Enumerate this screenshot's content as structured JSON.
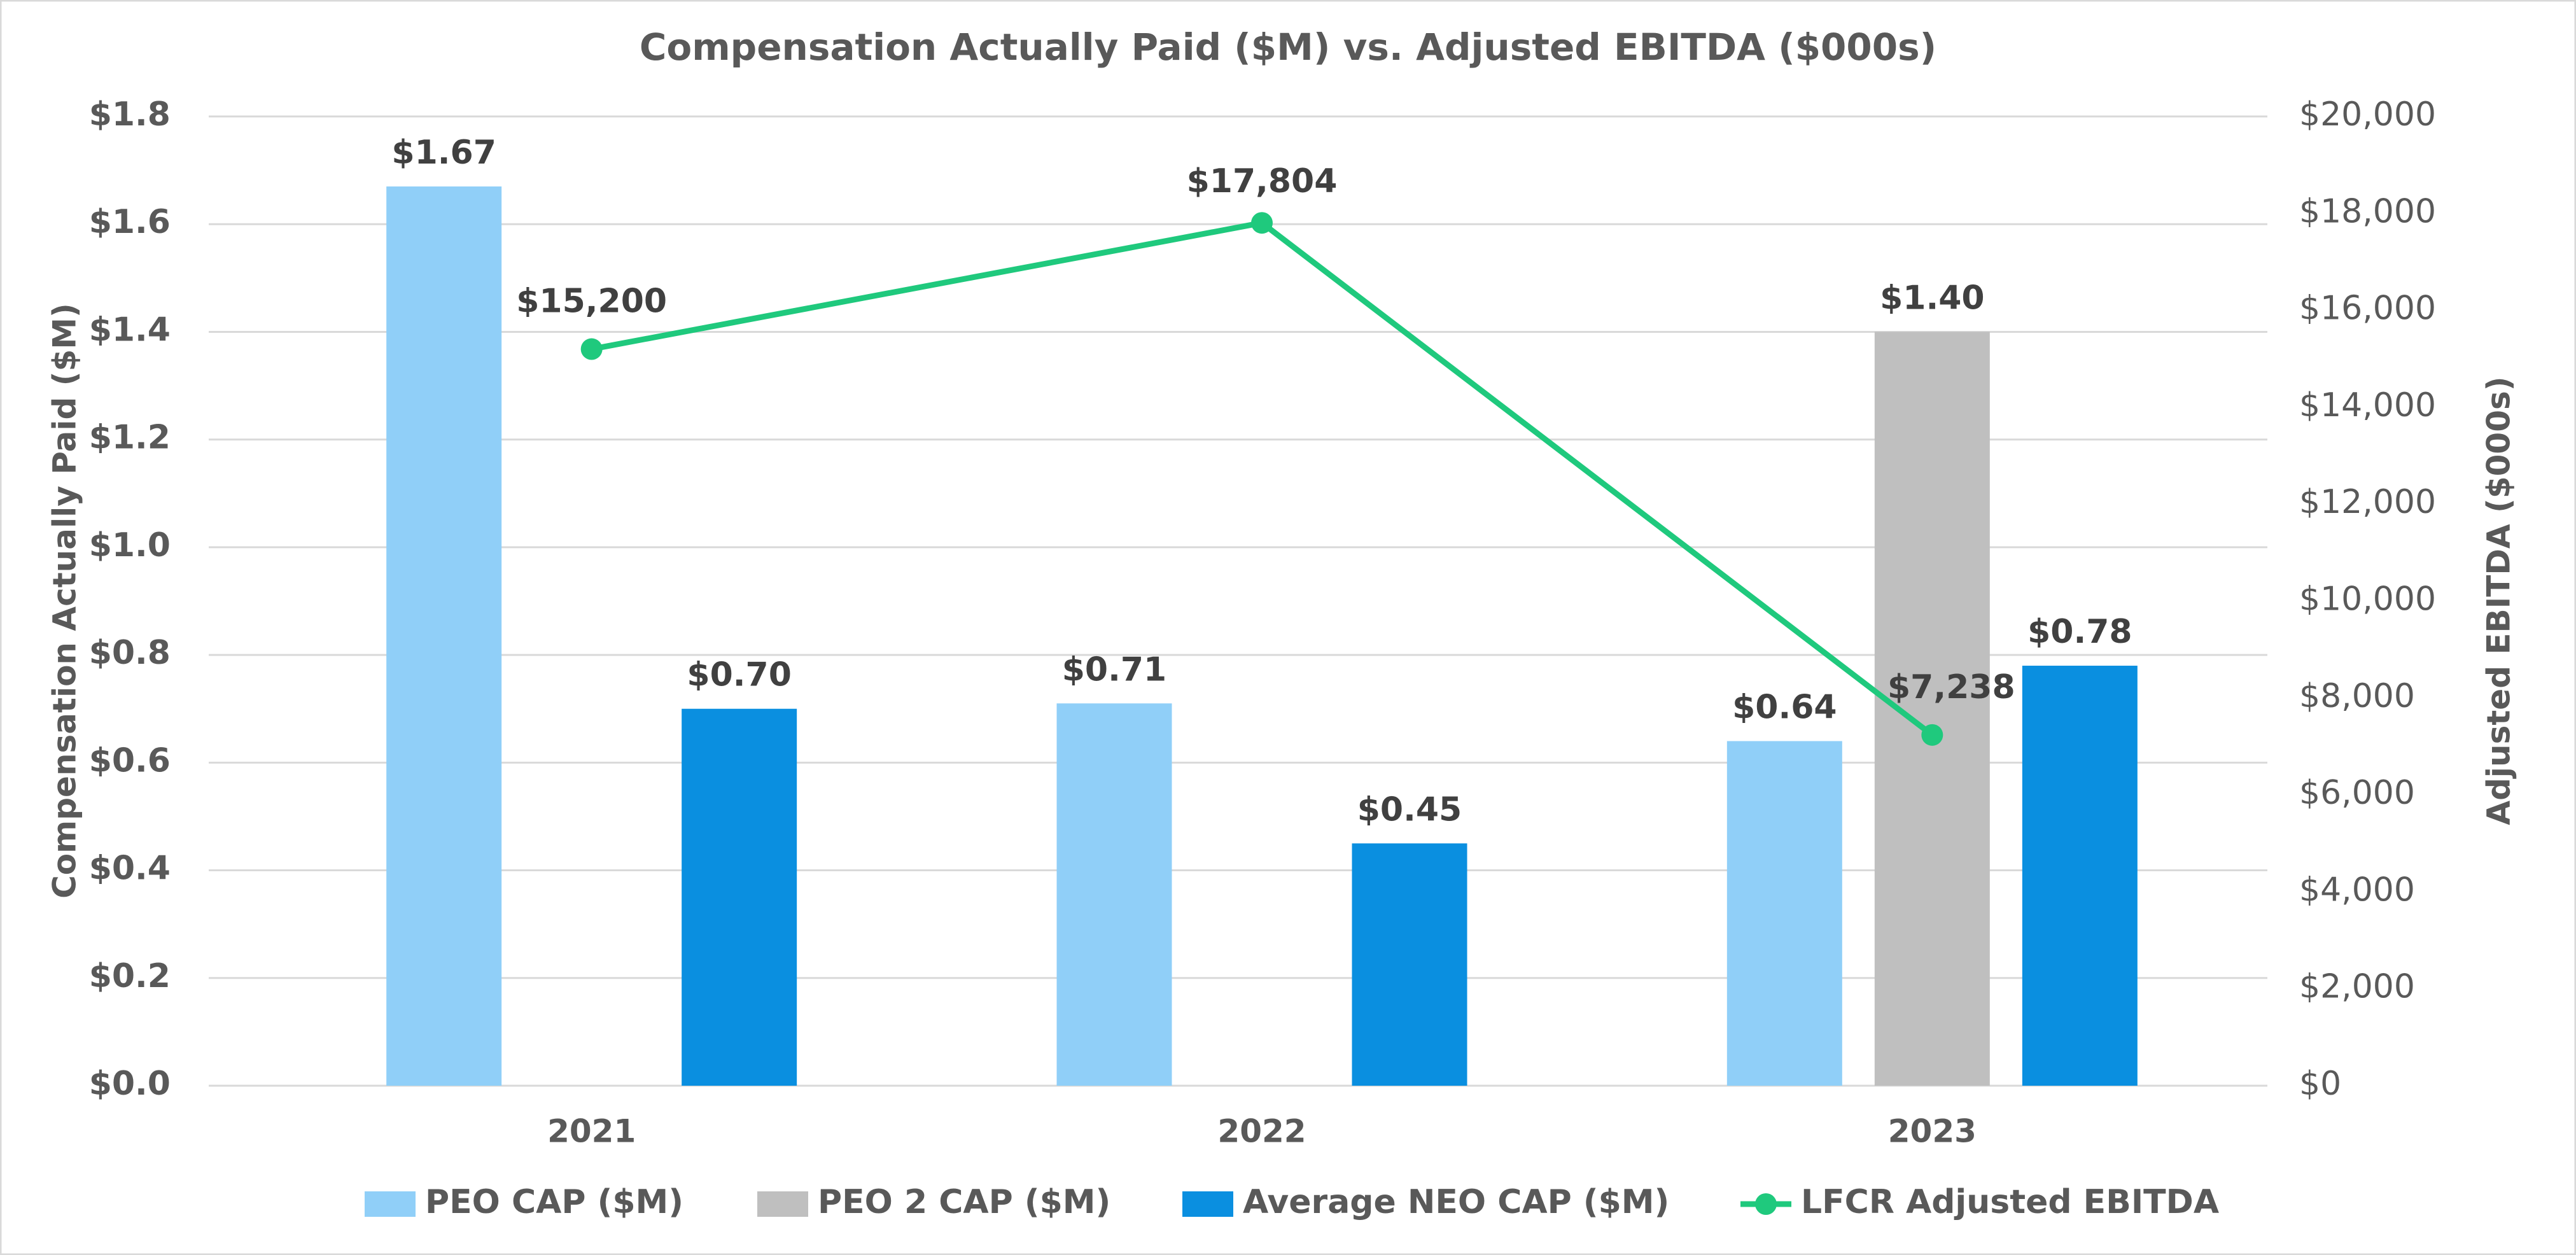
{
  "chart_data": {
    "type": "bar",
    "title": "Compensation Actually Paid ($M) vs. Adjusted EBITDA ($000s)",
    "y_label": "Compensation Actually Paid ($M)",
    "y2_label": "Adjusted EBITDA ($000s)",
    "categories": [
      "2021",
      "2022",
      "2023"
    ],
    "series": [
      {
        "name": "PEO CAP ($M)",
        "color": "#90cff8",
        "values": [
          1.67,
          0.71,
          0.64
        ],
        "value_labels": [
          "$1.67",
          "$0.71",
          "$0.64"
        ]
      },
      {
        "name": "PEO 2 CAP ($M)",
        "color": "#bfbfbf",
        "values": [
          null,
          null,
          1.4
        ],
        "value_labels": [
          null,
          null,
          "$1.40"
        ]
      },
      {
        "name": "Average NEO CAP ($M)",
        "color": "#0a8fe0",
        "values": [
          0.7,
          0.45,
          0.78
        ],
        "value_labels": [
          "$0.70",
          "$0.45",
          "$0.78"
        ]
      },
      {
        "name": "LFCR Adjusted EBITDA",
        "color": "#1fc97d",
        "type": "line",
        "axis": "y2",
        "values": [
          15200,
          17804,
          7238
        ],
        "value_labels": [
          "$15,200",
          "$17,804",
          "$7,238"
        ]
      }
    ],
    "ylim": [
      0,
      1.8
    ],
    "yticks": [
      {
        "value": 0,
        "label": "$0.0"
      },
      {
        "value": 0.2,
        "label": "$0.2"
      },
      {
        "value": 0.4,
        "label": "$0.4"
      },
      {
        "value": 0.6,
        "label": "$0.6"
      },
      {
        "value": 0.8,
        "label": "$0.8"
      },
      {
        "value": 1.0,
        "label": "$1.0"
      },
      {
        "value": 1.2,
        "label": "$1.2"
      },
      {
        "value": 1.4,
        "label": "$1.4"
      },
      {
        "value": 1.6,
        "label": "$1.6"
      },
      {
        "value": 1.8,
        "label": "$1.8"
      }
    ],
    "y2lim": [
      0,
      20000
    ],
    "y2ticks": [
      {
        "value": 0,
        "label": "$0"
      },
      {
        "value": 2000,
        "label": "$2,000"
      },
      {
        "value": 4000,
        "label": "$4,000"
      },
      {
        "value": 6000,
        "label": "$6,000"
      },
      {
        "value": 8000,
        "label": "$8,000"
      },
      {
        "value": 10000,
        "label": "$10,000"
      },
      {
        "value": 12000,
        "label": "$12,000"
      },
      {
        "value": 14000,
        "label": "$14,000"
      },
      {
        "value": 16000,
        "label": "$16,000"
      },
      {
        "value": 18000,
        "label": "$18,000"
      },
      {
        "value": 20000,
        "label": "$20,000"
      }
    ],
    "grid": true,
    "legend": "bottom"
  }
}
